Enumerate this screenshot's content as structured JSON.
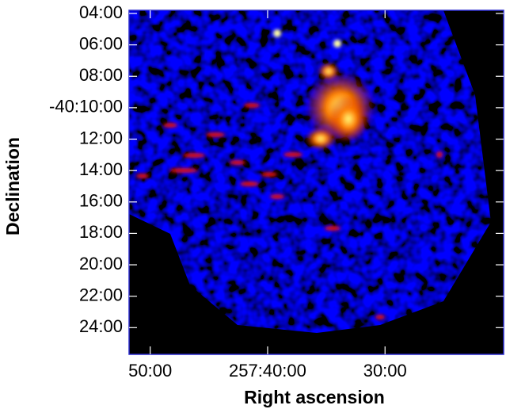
{
  "chart_data": {
    "type": "image",
    "x_label": "Right ascension",
    "y_label": "Declination",
    "xlim": [
      51.8,
      19.9
    ],
    "ylim": [
      25.7,
      3.8
    ],
    "xticks": [
      {
        "value": 50,
        "label": "50:00"
      },
      {
        "value": 40,
        "label": "257:40:00"
      },
      {
        "value": 30,
        "label": "30:00"
      }
    ],
    "yticks": [
      {
        "value": 4,
        "label": "04:00"
      },
      {
        "value": 6,
        "label": "06:00"
      },
      {
        "value": 8,
        "label": "08:00"
      },
      {
        "value": 10,
        "label": "-40:10:00"
      },
      {
        "value": 12,
        "label": "12:00"
      },
      {
        "value": 14,
        "label": "14:00"
      },
      {
        "value": 16,
        "label": "16:00"
      },
      {
        "value": 18,
        "label": "18:00"
      },
      {
        "value": 20,
        "label": "20:00"
      },
      {
        "value": 22,
        "label": "22:00"
      },
      {
        "value": 24,
        "label": "24:00"
      }
    ]
  }
}
